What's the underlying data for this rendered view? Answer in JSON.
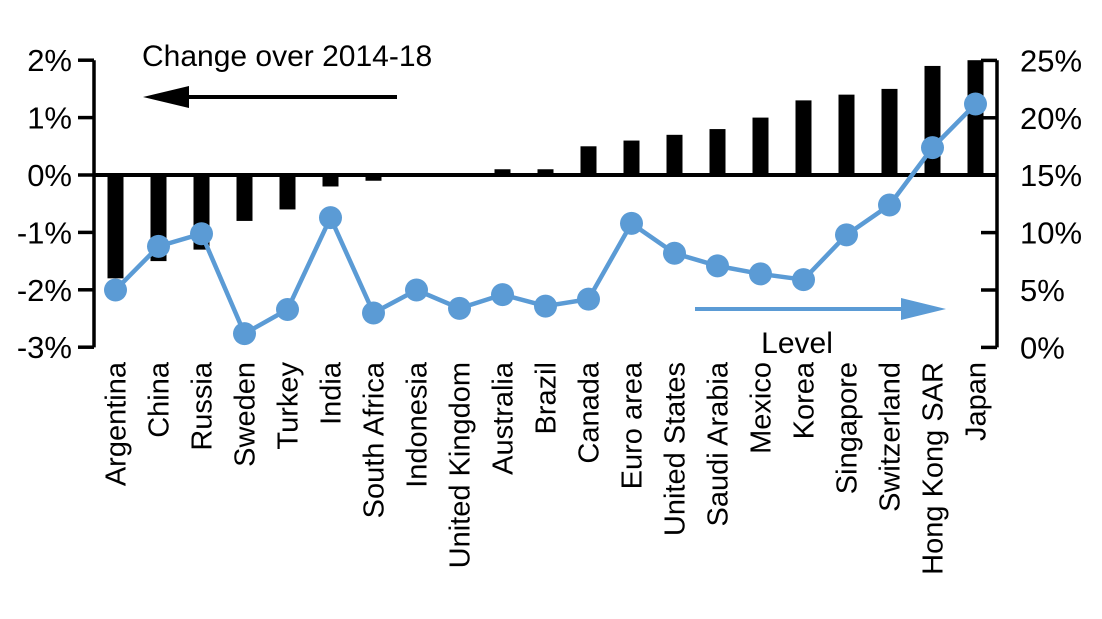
{
  "chart_data": {
    "type": "bar",
    "subtype": "dual_axis_bar_line_combo",
    "title": "",
    "categories": [
      "Argentina",
      "China",
      "Russia",
      "Sweden",
      "Turkey",
      "India",
      "South Africa",
      "Indonesia",
      "United Kingdom",
      "Australia",
      "Brazil",
      "Canada",
      "Euro area",
      "United States",
      "Saudi Arabia",
      "Mexico",
      "Korea",
      "Singapore",
      "Switzerland",
      "Hong Kong SAR",
      "Japan"
    ],
    "series": [
      {
        "name": "Change over 2014-18",
        "type": "bar",
        "axis": "left",
        "color": "#000000",
        "values": [
          -1.8,
          -1.5,
          -1.3,
          -0.8,
          -0.6,
          -0.2,
          -0.1,
          0.0,
          0.0,
          0.1,
          0.1,
          0.5,
          0.6,
          0.7,
          0.8,
          1.0,
          1.3,
          1.4,
          1.5,
          1.9,
          2.0
        ]
      },
      {
        "name": "Level",
        "type": "line",
        "axis": "right",
        "color": "#5B9BD5",
        "values": [
          5.0,
          8.8,
          9.9,
          1.2,
          3.3,
          11.3,
          3.0,
          5.0,
          3.4,
          4.6,
          3.6,
          4.2,
          10.8,
          8.2,
          7.1,
          6.4,
          5.9,
          9.8,
          12.4,
          17.4,
          21.2
        ]
      }
    ],
    "left_axis": {
      "tick_labels": [
        "2%",
        "1%",
        "0%",
        "-1%",
        "-2%",
        "-3%"
      ],
      "tick_values": [
        2,
        1,
        0,
        -1,
        -2,
        -3
      ],
      "min": -3,
      "max": 2,
      "grid": false
    },
    "right_axis": {
      "tick_labels": [
        "25%",
        "20%",
        "15%",
        "10%",
        "5%",
        "0%"
      ],
      "tick_values": [
        25,
        20,
        15,
        10,
        5,
        0
      ],
      "min": 0,
      "max": 25,
      "grid": false
    },
    "annotations": {
      "bar_label": "Change over 2014-18",
      "bar_arrow_direction": "left",
      "line_label": "Level",
      "line_arrow_direction": "right"
    },
    "colors": {
      "bar": "#000000",
      "line": "#5B9BD5",
      "text": "#000000",
      "background": "#FFFFFF"
    },
    "legend_position": "in-plot annotations with arrows"
  }
}
